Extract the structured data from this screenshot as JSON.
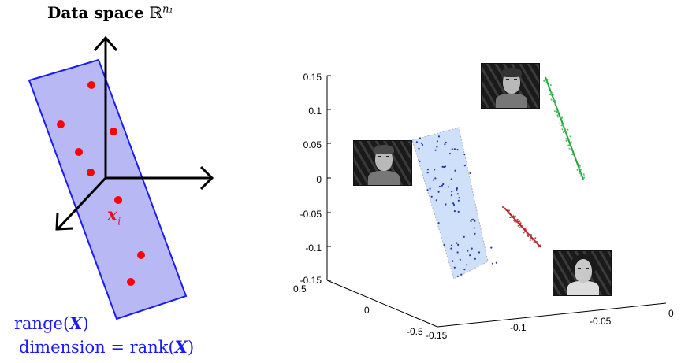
{
  "left_panel": {
    "title_text": "Data space ",
    "title_space_symbol": "ℝ",
    "title_superscript": "n₁",
    "point_label_base": "x",
    "point_label_sub": "i",
    "range_prefix": "range(",
    "range_var": "X",
    "range_suffix": ")",
    "dim_prefix": "dimension = rank(",
    "dim_var": "X",
    "dim_suffix": ")",
    "colors": {
      "plane": "#b8b8f5",
      "plane_edge": "#1a1aff",
      "points": "#ff0000",
      "axes": "#000000"
    },
    "point_count": 9
  },
  "right_panel": {
    "z_ticks": [
      "0.15",
      "0.1",
      "0.05",
      "0",
      "-0.05",
      "-0.1",
      "-0.15"
    ],
    "y_ticks": [
      "0.5",
      "0",
      "-0.5"
    ],
    "x_ticks": [
      "-0.15",
      "-0.1",
      "-0.05",
      "0"
    ],
    "colors": {
      "cluster_blue": "#1f3aa8",
      "plane_fill": "#cfe0fa",
      "cluster_green": "#1fa33a",
      "cluster_red": "#a81f1f"
    },
    "faces": [
      "face-man-short-hair",
      "face-man-center",
      "face-woman"
    ]
  }
}
